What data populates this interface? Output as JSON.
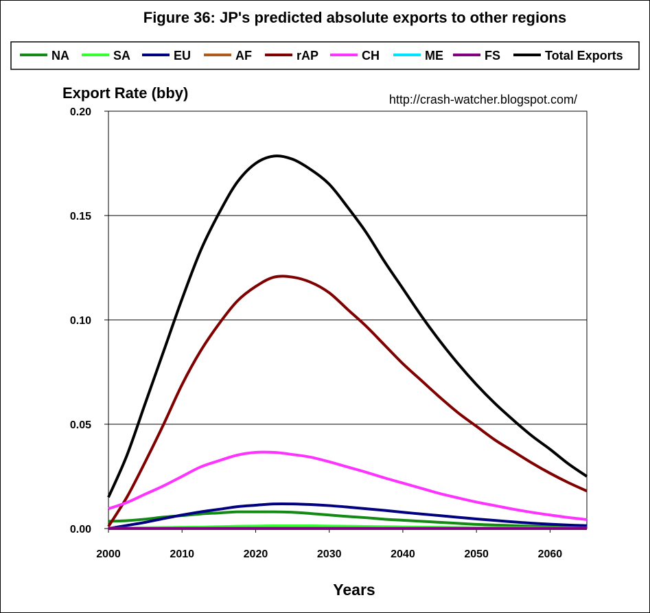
{
  "chart_data": {
    "type": "line",
    "title": "Figure 36: JP's predicted absolute exports to other regions",
    "ylabel": "Export Rate (bby)",
    "xlabel": "Years",
    "annotation": "http://crash-watcher.blogspot.com/",
    "xlim": [
      2000,
      2065
    ],
    "ylim": [
      0,
      0.2
    ],
    "x_ticks": [
      2000,
      2010,
      2020,
      2030,
      2040,
      2050,
      2060
    ],
    "y_ticks": [
      0.0,
      0.05,
      0.1,
      0.15,
      0.2
    ],
    "y_tick_labels": [
      "0.00",
      "0.05",
      "0.10",
      "0.15",
      "0.20"
    ],
    "legend_position": "top",
    "grid": "horizontal",
    "x": [
      2000,
      2002.5,
      2005,
      2007.5,
      2010,
      2012.5,
      2015,
      2017.5,
      2020,
      2022.5,
      2025,
      2027.5,
      2030,
      2032.5,
      2035,
      2037.5,
      2040,
      2042.5,
      2045,
      2047.5,
      2050,
      2052.5,
      2055,
      2057.5,
      2060,
      2062.5,
      2065
    ],
    "series": [
      {
        "name": "NA",
        "color": "#138a13",
        "values": [
          0.0035,
          0.0038,
          0.0045,
          0.0055,
          0.0062,
          0.007,
          0.0075,
          0.008,
          0.008,
          0.008,
          0.0078,
          0.0072,
          0.0065,
          0.0058,
          0.0052,
          0.0045,
          0.004,
          0.0035,
          0.003,
          0.0025,
          0.002,
          0.0017,
          0.0014,
          0.0011,
          0.0009,
          0.0007,
          0.0006
        ]
      },
      {
        "name": "SA",
        "color": "#33ff33",
        "values": [
          0.0003,
          0.0003,
          0.0004,
          0.0005,
          0.0006,
          0.0007,
          0.0009,
          0.0011,
          0.0012,
          0.0013,
          0.0013,
          0.0013,
          0.0012,
          0.0011,
          0.001,
          0.0009,
          0.0008,
          0.0007,
          0.0006,
          0.0005,
          0.0004,
          0.0004,
          0.0003,
          0.0003,
          0.0002,
          0.0002,
          0.0002
        ]
      },
      {
        "name": "EU",
        "color": "#000080",
        "values": [
          0.0,
          0.0015,
          0.003,
          0.0048,
          0.0065,
          0.008,
          0.0092,
          0.0105,
          0.0112,
          0.0118,
          0.0118,
          0.0115,
          0.011,
          0.0103,
          0.0095,
          0.0087,
          0.0078,
          0.007,
          0.0062,
          0.0054,
          0.0046,
          0.0039,
          0.0032,
          0.0026,
          0.0021,
          0.0017,
          0.0014
        ]
      },
      {
        "name": "AF",
        "color": "#b05a1c",
        "values": [
          0.0001,
          0.0001,
          0.0001,
          0.0002,
          0.0002,
          0.0002,
          0.0003,
          0.0003,
          0.0003,
          0.0003,
          0.0003,
          0.0003,
          0.0003,
          0.0003,
          0.0003,
          0.0002,
          0.0002,
          0.0002,
          0.0002,
          0.0002,
          0.0001,
          0.0001,
          0.0001,
          0.0001,
          0.0001,
          0.0001,
          0.0001
        ]
      },
      {
        "name": "rAP",
        "color": "#800000",
        "values": [
          0.001,
          0.015,
          0.032,
          0.05,
          0.069,
          0.085,
          0.098,
          0.109,
          0.116,
          0.1205,
          0.1205,
          0.118,
          0.113,
          0.105,
          0.097,
          0.088,
          0.079,
          0.071,
          0.063,
          0.0555,
          0.049,
          0.0425,
          0.037,
          0.0315,
          0.0265,
          0.022,
          0.018
        ]
      },
      {
        "name": "CH",
        "color": "#ff33ff",
        "values": [
          0.0095,
          0.0125,
          0.0165,
          0.0205,
          0.025,
          0.0295,
          0.0325,
          0.0352,
          0.0365,
          0.0365,
          0.0355,
          0.0342,
          0.032,
          0.0295,
          0.027,
          0.0243,
          0.0218,
          0.0193,
          0.0168,
          0.0147,
          0.0127,
          0.011,
          0.0093,
          0.0078,
          0.0065,
          0.0053,
          0.0043
        ]
      },
      {
        "name": "ME",
        "color": "#00e5ff",
        "values": [
          0.0001,
          0.0001,
          0.0001,
          0.0001,
          0.0001,
          0.0001,
          0.0001,
          0.0001,
          0.0001,
          0.0001,
          0.0001,
          0.0001,
          0.0001,
          0.0001,
          0.0001,
          0.0001,
          0.0001,
          0.0001,
          0.0001,
          0.0001,
          0.0001,
          0.0001,
          0.0001,
          0.0001,
          0.0001,
          0.0001,
          0.0001
        ]
      },
      {
        "name": "FS",
        "color": "#800080",
        "values": [
          0.0,
          0.0,
          0.0,
          0.0,
          0.0,
          0.0,
          0.0,
          0.0,
          0.0,
          0.0,
          0.0,
          0.0,
          0.0,
          0.0,
          0.0,
          0.0,
          0.0,
          0.0,
          0.0,
          0.0,
          0.0,
          0.0,
          0.0,
          0.0,
          0.0,
          0.0,
          0.0
        ]
      },
      {
        "name": "Total Exports",
        "color": "#000000",
        "values": [
          0.015,
          0.035,
          0.06,
          0.085,
          0.11,
          0.133,
          0.151,
          0.166,
          0.175,
          0.1785,
          0.177,
          0.172,
          0.165,
          0.154,
          0.142,
          0.128,
          0.115,
          0.102,
          0.09,
          0.079,
          0.069,
          0.06,
          0.052,
          0.0445,
          0.038,
          0.031,
          0.025
        ]
      }
    ]
  }
}
